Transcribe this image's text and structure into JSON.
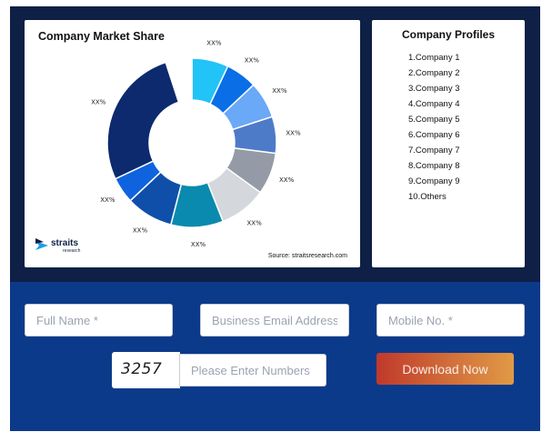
{
  "chart_card": {
    "title": "Company Market Share",
    "source": "Source: straitsresearch.com",
    "logo_text": "straits",
    "logo_sub": "research"
  },
  "chart_data": {
    "type": "pie",
    "title": "Company Market Share",
    "donut": true,
    "categories": [
      "",
      "",
      "",
      "",
      "",
      "",
      "",
      "",
      "",
      "",
      ""
    ],
    "values": [
      7,
      6,
      7,
      7,
      8,
      9,
      10,
      9,
      5,
      27,
      5
    ],
    "labels": [
      "XX%",
      "XX%",
      "XX%",
      "XX%",
      "XX%",
      "XX%",
      "XX%",
      "XX%",
      "XX%",
      "XX%",
      ""
    ],
    "colors": [
      "#22c3f6",
      "#0a6ee6",
      "#6aa8f8",
      "#4d7bc8",
      "#949ba6",
      "#d4d7dc",
      "#0a8aae",
      "#0f4faa",
      "#0f63de",
      "#0d2a6e",
      "#ffffff"
    ]
  },
  "profiles": {
    "title": "Company Profiles",
    "items": [
      "1.Company 1",
      "2.Company 2",
      "3.Company 3",
      "4.Company 4",
      "5.Company 5",
      "6.Company 6",
      "7.Company 7",
      "8.Company 8",
      "9.Company 9",
      "10.Others"
    ]
  },
  "form": {
    "full_name_placeholder": "Full Name *",
    "email_placeholder": "Business Email Address *",
    "mobile_placeholder": "Mobile No. *",
    "captcha_code": "3257",
    "captcha_placeholder": "Please Enter Numbers",
    "download_label": "Download Now"
  }
}
